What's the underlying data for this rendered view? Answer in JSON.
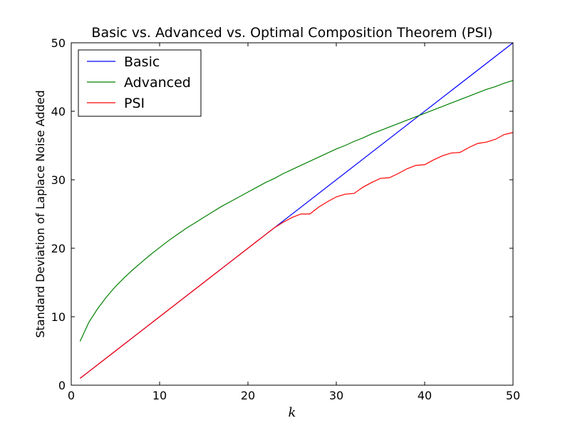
{
  "chart_data": {
    "type": "line",
    "title": "Basic vs. Advanced vs. Optimal Composition Theorem (PSI)",
    "xlabel": "k",
    "ylabel": "Standard Deviation of Laplace Noise Added",
    "xlim": [
      0,
      50
    ],
    "ylim": [
      0,
      50
    ],
    "xticks": [
      0,
      10,
      20,
      30,
      40,
      50
    ],
    "yticks": [
      0,
      10,
      20,
      30,
      40,
      50
    ],
    "xtick_labels": [
      "0",
      "10",
      "20",
      "30",
      "40",
      "50"
    ],
    "ytick_labels": [
      "0",
      "10",
      "20",
      "30",
      "40",
      "50"
    ],
    "grid": false,
    "legend_position": "top-left",
    "series": [
      {
        "name": "Basic",
        "color": "#0000ff",
        "x": [
          1,
          50
        ],
        "y": [
          1,
          50
        ]
      },
      {
        "name": "Advanced",
        "color": "#008000",
        "x": [
          1,
          2,
          3,
          4,
          5,
          6,
          7,
          8,
          9,
          10,
          11,
          12,
          13,
          14,
          15,
          16,
          17,
          18,
          19,
          20,
          21,
          22,
          23,
          24,
          25,
          26,
          27,
          28,
          29,
          30,
          31,
          32,
          33,
          34,
          35,
          36,
          37,
          38,
          39,
          40,
          41,
          42,
          43,
          44,
          45,
          46,
          47,
          48,
          49,
          50
        ],
        "y": [
          6.4,
          9.2,
          11.2,
          12.9,
          14.4,
          15.7,
          16.9,
          18.0,
          19.1,
          20.1,
          21.1,
          22.0,
          22.9,
          23.7,
          24.5,
          25.3,
          26.1,
          26.8,
          27.5,
          28.2,
          28.9,
          29.6,
          30.2,
          30.9,
          31.5,
          32.1,
          32.7,
          33.3,
          33.9,
          34.5,
          35.0,
          35.6,
          36.1,
          36.7,
          37.2,
          37.7,
          38.2,
          38.7,
          39.2,
          39.7,
          40.2,
          40.7,
          41.2,
          41.7,
          42.2,
          42.7,
          43.2,
          43.6,
          44.1,
          44.5
        ]
      },
      {
        "name": "PSI",
        "color": "#ff0000",
        "x": [
          1,
          2,
          3,
          4,
          5,
          6,
          7,
          8,
          9,
          10,
          11,
          12,
          13,
          14,
          15,
          16,
          17,
          18,
          19,
          20,
          21,
          22,
          23,
          24,
          25,
          26,
          27,
          28,
          29,
          30,
          31,
          32,
          33,
          34,
          35,
          36,
          37,
          38,
          39,
          40,
          41,
          42,
          43,
          44,
          45,
          46,
          47,
          48,
          49,
          50
        ],
        "y": [
          1,
          2,
          3,
          4,
          5,
          6,
          7,
          8,
          9,
          10,
          11,
          12,
          13,
          14,
          15,
          16,
          17,
          18,
          19,
          20,
          21,
          22,
          23,
          23.8,
          24.5,
          25.0,
          25.0,
          26.0,
          26.8,
          27.5,
          27.9,
          28.0,
          28.9,
          29.6,
          30.2,
          30.3,
          30.9,
          31.6,
          32.1,
          32.2,
          32.9,
          33.5,
          33.9,
          34.0,
          34.7,
          35.3,
          35.5,
          35.9,
          36.6,
          36.9
        ]
      }
    ]
  }
}
